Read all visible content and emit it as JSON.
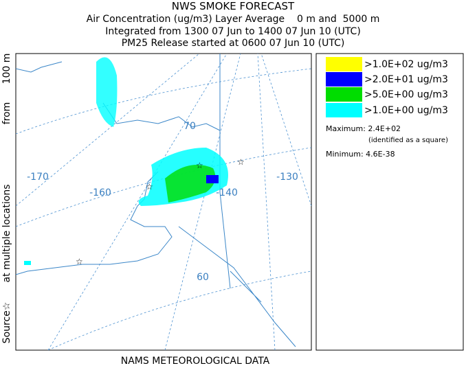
{
  "header": {
    "title": "NWS SMOKE FORECAST",
    "lines": [
      "Air Concentration (ug/m3) Layer Average    0 m and  5000 m",
      "Integrated from 1300 07 Jun to 1400 07 Jun 10 (UTC)",
      "PM25 Release started at 0600 07 Jun 10 (UTC)"
    ]
  },
  "side_label": [
    "Source☆",
    "at multiple locations",
    "from",
    "100 m"
  ],
  "map": {
    "labels": [
      "-170",
      "-160",
      "-140",
      "-130",
      "70",
      "60"
    ]
  },
  "legend": {
    "entries": [
      {
        "label": ">1.0E+02 ug/m3",
        "color": "#ffff00"
      },
      {
        "label": ">2.0E+01 ug/m3",
        "color": "#0000ff"
      },
      {
        "label": ">5.0E+00 ug/m3",
        "color": "#00dd00"
      },
      {
        "label": ">1.0E+00 ug/m3",
        "color": "#00ffff"
      }
    ],
    "maximum": "Maximum: 2.4E+02",
    "maximum_note": "(identified as a square)",
    "minimum": "Minimum: 4.6E-38"
  },
  "footer": "NAMS METEOROLOGICAL DATA"
}
